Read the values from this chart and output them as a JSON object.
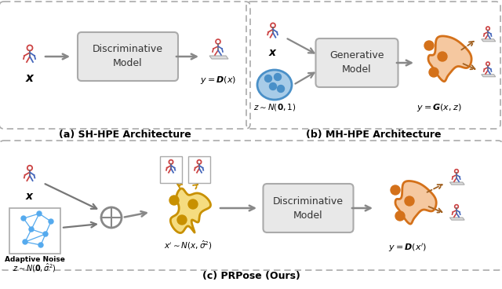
{
  "fig_width": 6.4,
  "fig_height": 3.68,
  "dpi": 100,
  "bg_color": "#ffffff",
  "panel_a_title": "(a) SH-HPE Architecture",
  "panel_b_title": "(b) MH-HPE Architecture",
  "panel_c_title": "(c) PRPose (Ours)",
  "disc_model_text": "Discriminative\nModel",
  "gen_model_text": "Generative\nModel",
  "disc_model2_text": "Discriminative\nModel",
  "label_x_a": "$\\boldsymbol{x}$",
  "label_ydx": "$y = \\boldsymbol{D}(x)$",
  "label_x_b": "$\\boldsymbol{x}$",
  "label_z_b": "$z{\\sim}N(\\boldsymbol{0}, 1)$",
  "label_ygxz": "$y = \\boldsymbol{G}(x, z)$",
  "label_x_c": "$\\boldsymbol{x}$",
  "label_z_c": "$z \\sim N(\\boldsymbol{0}, \\hat{\\sigma}^2)$",
  "label_adaptive": "Adaptive Noise",
  "label_xprime": "$x^{\\prime} \\sim N(x, \\hat{\\sigma}^2)$",
  "label_ydxprime": "$y = \\boldsymbol{D}(x^{\\prime})$",
  "orange_color": "#D4711A",
  "orange_fill": "#F5C8A0",
  "yellow_color": "#C89000",
  "yellow_fill": "#F5DC80",
  "blue_circle_color": "#4A90C8",
  "blue_circle_fill": "#A8CCE8",
  "box_color": "#AAAAAA",
  "box_fill": "#E8E8E8",
  "arrow_color": "#888888",
  "dashed_arrow_color": "#A06020",
  "grid_line_color": "#AAAAAA",
  "title_fontsize": 9,
  "label_fontsize": 8
}
